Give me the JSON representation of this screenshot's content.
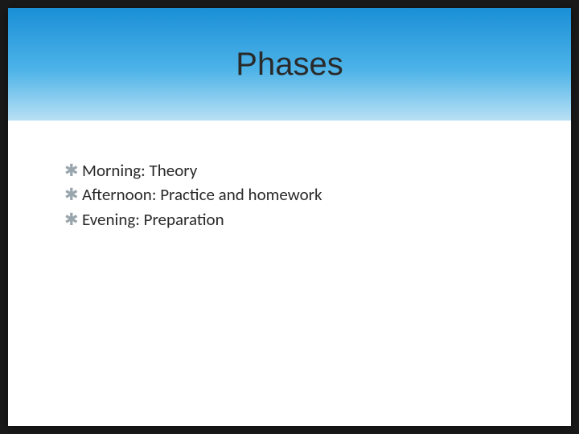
{
  "slide": {
    "title": "Phases",
    "bullets": [
      "Morning: Theory",
      "Afternoon: Practice and homework",
      "Evening: Preparation"
    ]
  },
  "styles": {
    "title_band_gradient_top": "#1a8fd6",
    "title_band_gradient_mid": "#4db3e8",
    "title_band_gradient_bottom": "#b9e0f4",
    "title_color": "#2a2a2a",
    "title_fontsize": 40,
    "body_text_color": "#2a2a2a",
    "body_fontsize": 21,
    "bullet_glyph": "✱",
    "bullet_color": "#9aa6ad",
    "slide_background": "#ffffff",
    "page_background": "#1a1a1a",
    "slide_width": 700,
    "slide_height": 520,
    "title_band_height": 140
  }
}
